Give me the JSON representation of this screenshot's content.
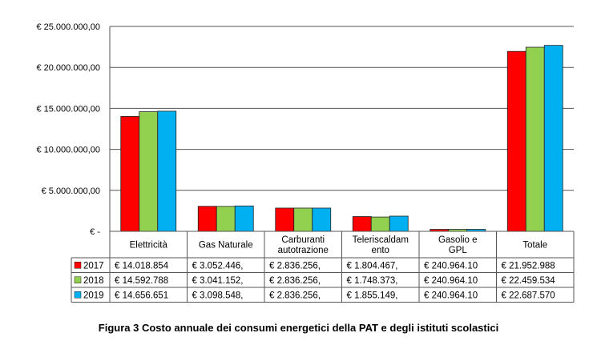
{
  "chart_data": {
    "type": "bar",
    "title": "",
    "xlabel": "",
    "ylabel": "",
    "ylim": [
      0,
      25000000
    ],
    "yticks": [
      {
        "value": 0,
        "label": "€ -"
      },
      {
        "value": 5000000,
        "label": "€ 5.000.000,00"
      },
      {
        "value": 10000000,
        "label": "€ 10.000.000,00"
      },
      {
        "value": 15000000,
        "label": "€ 15.000.000,00"
      },
      {
        "value": 20000000,
        "label": "€ 20.000.000,00"
      },
      {
        "value": 25000000,
        "label": "€ 25.000.000,00"
      }
    ],
    "categories": [
      [
        "Elettricità"
      ],
      [
        "Gas Naturale"
      ],
      [
        "Carburanti",
        "autotrazione"
      ],
      [
        "Teleriscaldam",
        "ento"
      ],
      [
        "Gasolio e",
        "GPL"
      ],
      [
        "Totale"
      ]
    ],
    "series": [
      {
        "name": "2017",
        "color": "#ff0000",
        "values": [
          14018854,
          3052446,
          2836256,
          1804467,
          240964.1,
          21952988
        ],
        "labels": [
          "€ 14.018.854",
          "€ 3.052.446,",
          "€ 2.836.256,",
          "€ 1.804.467,",
          "€ 240.964.10",
          "€ 21.952.988"
        ]
      },
      {
        "name": "2018",
        "color": "#92d050",
        "values": [
          14592788,
          3041152,
          2836256,
          1748373,
          240964.1,
          22459534
        ],
        "labels": [
          "€ 14.592.788",
          "€ 3.041.152,",
          "€ 2.836.256,",
          "€ 1.748.373,",
          "€ 240.964.10",
          "€ 22.459.534"
        ]
      },
      {
        "name": "2019",
        "color": "#00b0f0",
        "values": [
          14656651,
          3098548,
          2836256,
          1855149,
          240964.1,
          22687570
        ],
        "labels": [
          "€ 14.656.651",
          "€ 3.098.548,",
          "€ 2.836.256,",
          "€ 1.855.149,",
          "€ 240.964.10",
          "€ 22.687.570"
        ]
      }
    ],
    "grid": true,
    "legend_placement": "data-table-left"
  },
  "caption": "Figura 3 Costo annuale dei consumi energetici della PAT e degli istituti scolastici"
}
